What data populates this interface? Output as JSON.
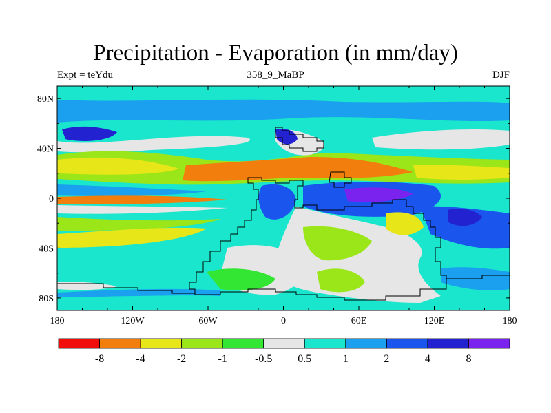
{
  "title": "Precipitation - Evaporation (in mm/day)",
  "subtitle_left": "Expt = teYdu",
  "subtitle_center": "358_9_MaBP",
  "subtitle_right": "DJF",
  "map": {
    "lon_range": [
      -180,
      180
    ],
    "lat_range": [
      -90,
      90
    ],
    "x_ticks": [
      {
        "value": -180,
        "label": "180"
      },
      {
        "value": -120,
        "label": "120W"
      },
      {
        "value": -60,
        "label": "60W"
      },
      {
        "value": 0,
        "label": "0"
      },
      {
        "value": 60,
        "label": "60E"
      },
      {
        "value": 120,
        "label": "120E"
      },
      {
        "value": 180,
        "label": "180"
      }
    ],
    "y_ticks": [
      {
        "value": 80,
        "label": "80N"
      },
      {
        "value": 40,
        "label": "40N"
      },
      {
        "value": 0,
        "label": "0"
      },
      {
        "value": -40,
        "label": "40S"
      },
      {
        "value": -80,
        "label": "80S"
      }
    ]
  },
  "colorbar": {
    "colors": [
      "#f20d0d",
      "#f27f0d",
      "#e6e619",
      "#9ae619",
      "#33e633",
      "#e6e6e6",
      "#19e6cc",
      "#1aa0ee",
      "#1a55ee",
      "#2222d0",
      "#7a22ee"
    ],
    "labels": [
      "-8",
      "-4",
      "-2",
      "-1",
      "-0.5",
      "0.5",
      "1",
      "2",
      "4",
      "8"
    ]
  }
}
